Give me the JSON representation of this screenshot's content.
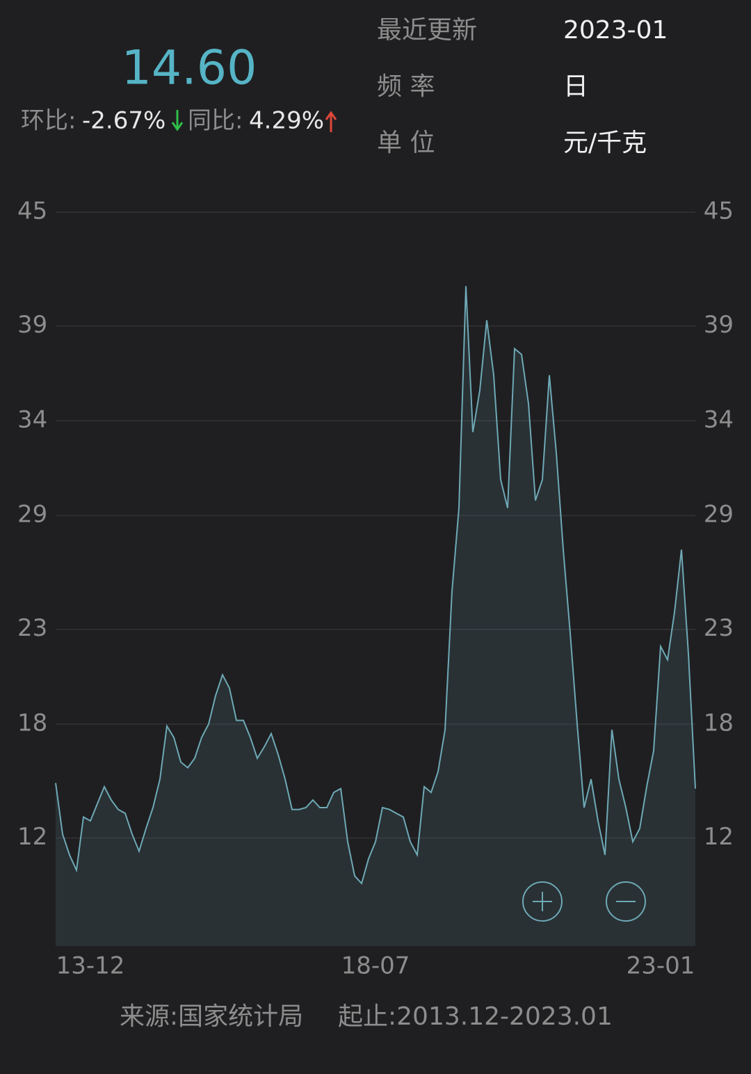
{
  "header": {
    "value": "14.60",
    "mom_label": "环比:",
    "mom_value": "-2.67%",
    "yoy_label": "同比:",
    "yoy_value": "4.29%"
  },
  "info": [
    {
      "label": "最近更新",
      "value": "2023-01"
    },
    {
      "label": "频 率",
      "value": "日"
    },
    {
      "label": "单 位",
      "value": "元/千克"
    }
  ],
  "chart_data": {
    "type": "area",
    "categories": [
      null,
      null,
      null,
      null,
      null,
      "13-12",
      null,
      null,
      null,
      null,
      null,
      null,
      null,
      null,
      null,
      null,
      null,
      null,
      null,
      null,
      null,
      null,
      null,
      null,
      null,
      null,
      null,
      null,
      null,
      null,
      null,
      null,
      null,
      null,
      null,
      null,
      null,
      null,
      null,
      null,
      null,
      null,
      null,
      null,
      null,
      null,
      "18-07",
      null,
      null,
      null,
      null,
      null,
      null,
      null,
      null,
      null,
      null,
      null,
      null,
      null,
      null,
      null,
      null,
      null,
      null,
      null,
      null,
      null,
      null,
      null,
      null,
      null,
      null,
      null,
      null,
      null,
      null,
      null,
      null,
      null,
      null,
      null,
      null,
      null,
      null,
      null,
      null,
      "23-01",
      null,
      null,
      null,
      null,
      null
    ],
    "series": [
      {
        "color": "#6ea9b6",
        "values": [
          14.9,
          12.2,
          11.1,
          10.3,
          13.1,
          12.9,
          13.8,
          14.7,
          14.0,
          13.5,
          13.3,
          12.2,
          11.3,
          12.5,
          13.6,
          15.1,
          17.9,
          17.3,
          16.0,
          15.7,
          16.2,
          17.3,
          18.0,
          19.5,
          20.6,
          19.9,
          18.2,
          18.2,
          17.3,
          16.2,
          16.8,
          17.5,
          16.4,
          15.1,
          13.5,
          13.5,
          13.6,
          14.0,
          13.6,
          13.6,
          14.4,
          14.6,
          11.8,
          10.0,
          9.6,
          10.9,
          11.8,
          13.6,
          13.5,
          13.3,
          13.1,
          11.8,
          11.1,
          14.7,
          14.4,
          15.5,
          17.7,
          25.0,
          29.4,
          41.1,
          33.4,
          35.6,
          39.3,
          36.4,
          30.9,
          29.4,
          37.8,
          37.5,
          34.9,
          29.8,
          30.9,
          36.4,
          32.3,
          27.2,
          22.8,
          18.0,
          13.6,
          15.1,
          12.9,
          11.1,
          17.7,
          15.1,
          13.6,
          11.8,
          12.5,
          14.7,
          16.6,
          22.1,
          21.4,
          23.9,
          27.2,
          21.7,
          14.6
        ]
      }
    ],
    "ylim": [
      6.3,
      45
    ],
    "yticks": [
      45,
      39,
      34,
      29,
      23,
      18,
      12
    ],
    "grid": true
  },
  "footer": {
    "source": "来源:国家统计局",
    "range": "起止:2013.12-2023.01"
  }
}
